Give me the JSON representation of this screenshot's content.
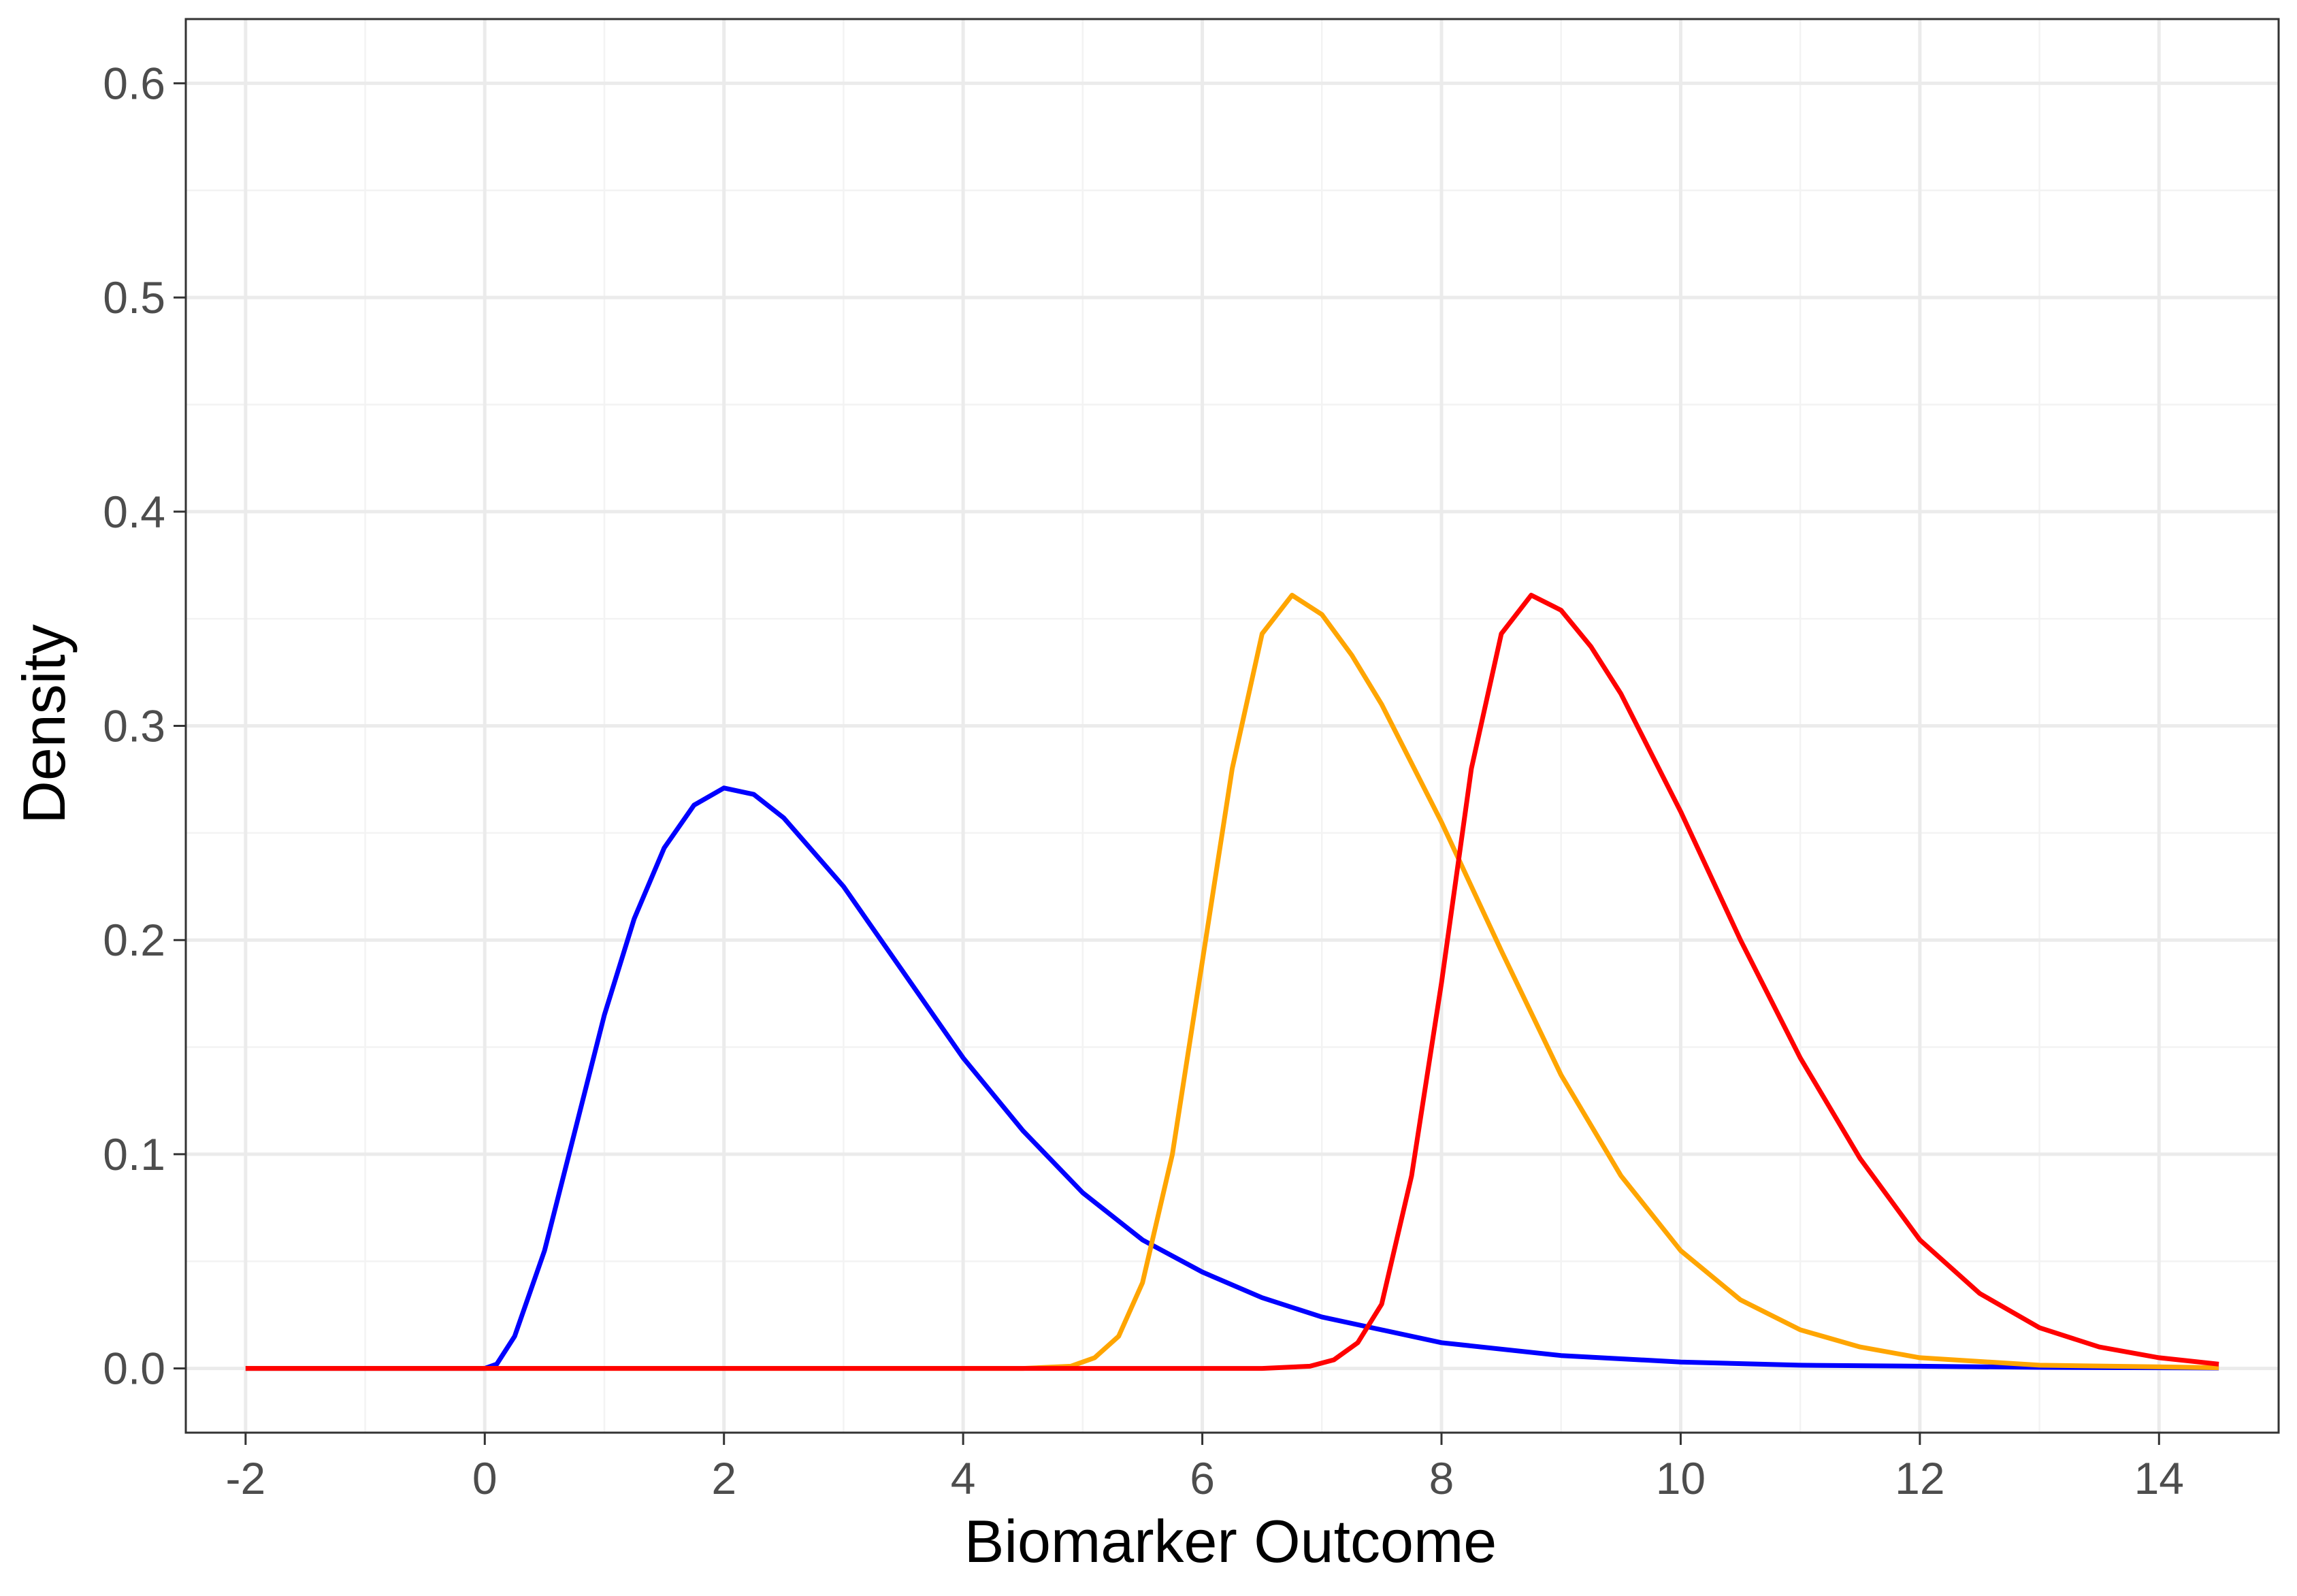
{
  "chart_data": {
    "type": "line",
    "title": "",
    "xlabel": "Biomarker Outcome",
    "ylabel": "Density",
    "xlim": [
      -2.5,
      15
    ],
    "ylim": [
      -0.03,
      0.63
    ],
    "x_ticks": [
      -2,
      0,
      2,
      4,
      6,
      8,
      10,
      12,
      14
    ],
    "x_tick_labels": [
      "-2",
      "0",
      "2",
      "4",
      "6",
      "8",
      "10",
      "12",
      "14"
    ],
    "y_ticks": [
      0.0,
      0.1,
      0.2,
      0.3,
      0.4,
      0.5,
      0.6
    ],
    "y_tick_labels": [
      "0.0",
      "0.1",
      "0.2",
      "0.3",
      "0.4",
      "0.5",
      "0.6"
    ],
    "grid": true,
    "legend": "none",
    "series": [
      {
        "color": "#0000FF",
        "points": [
          [
            -2,
            0
          ],
          [
            0,
            0
          ],
          [
            0.1,
            0.002
          ],
          [
            0.25,
            0.015
          ],
          [
            0.5,
            0.055
          ],
          [
            0.75,
            0.11
          ],
          [
            1.0,
            0.165
          ],
          [
            1.25,
            0.21
          ],
          [
            1.5,
            0.243
          ],
          [
            1.75,
            0.263
          ],
          [
            2.0,
            0.271
          ],
          [
            2.25,
            0.268
          ],
          [
            2.5,
            0.257
          ],
          [
            3.0,
            0.225
          ],
          [
            3.5,
            0.185
          ],
          [
            4.0,
            0.145
          ],
          [
            4.5,
            0.111
          ],
          [
            5.0,
            0.082
          ],
          [
            5.5,
            0.06
          ],
          [
            6.0,
            0.045
          ],
          [
            6.5,
            0.033
          ],
          [
            7.0,
            0.024
          ],
          [
            8.0,
            0.012
          ],
          [
            9.0,
            0.006
          ],
          [
            10.0,
            0.003
          ],
          [
            11.0,
            0.0015
          ],
          [
            12.0,
            0.001
          ],
          [
            13.0,
            0.0005
          ],
          [
            14.5,
            0.0002
          ]
        ]
      },
      {
        "color": "#FFA500",
        "points": [
          [
            -2,
            0
          ],
          [
            4.5,
            0
          ],
          [
            4.9,
            0.001
          ],
          [
            5.1,
            0.005
          ],
          [
            5.3,
            0.015
          ],
          [
            5.5,
            0.04
          ],
          [
            5.75,
            0.1
          ],
          [
            6.0,
            0.19
          ],
          [
            6.25,
            0.28
          ],
          [
            6.5,
            0.343
          ],
          [
            6.75,
            0.361
          ],
          [
            7.0,
            0.352
          ],
          [
            7.25,
            0.333
          ],
          [
            7.5,
            0.31
          ],
          [
            8.0,
            0.255
          ],
          [
            8.5,
            0.195
          ],
          [
            9.0,
            0.137
          ],
          [
            9.5,
            0.09
          ],
          [
            10.0,
            0.055
          ],
          [
            10.5,
            0.032
          ],
          [
            11.0,
            0.018
          ],
          [
            11.5,
            0.01
          ],
          [
            12.0,
            0.005
          ],
          [
            13.0,
            0.0015
          ],
          [
            14.5,
            0.0003
          ]
        ]
      },
      {
        "color": "#FF0000",
        "points": [
          [
            -2,
            0
          ],
          [
            6.5,
            0
          ],
          [
            6.9,
            0.001
          ],
          [
            7.1,
            0.004
          ],
          [
            7.3,
            0.012
          ],
          [
            7.5,
            0.03
          ],
          [
            7.75,
            0.09
          ],
          [
            8.0,
            0.18
          ],
          [
            8.25,
            0.28
          ],
          [
            8.5,
            0.343
          ],
          [
            8.75,
            0.361
          ],
          [
            9.0,
            0.354
          ],
          [
            9.25,
            0.337
          ],
          [
            9.5,
            0.315
          ],
          [
            10.0,
            0.26
          ],
          [
            10.5,
            0.2
          ],
          [
            11.0,
            0.145
          ],
          [
            11.5,
            0.098
          ],
          [
            12.0,
            0.06
          ],
          [
            12.5,
            0.035
          ],
          [
            13.0,
            0.019
          ],
          [
            13.5,
            0.01
          ],
          [
            14.0,
            0.005
          ],
          [
            14.5,
            0.002
          ]
        ]
      }
    ]
  }
}
